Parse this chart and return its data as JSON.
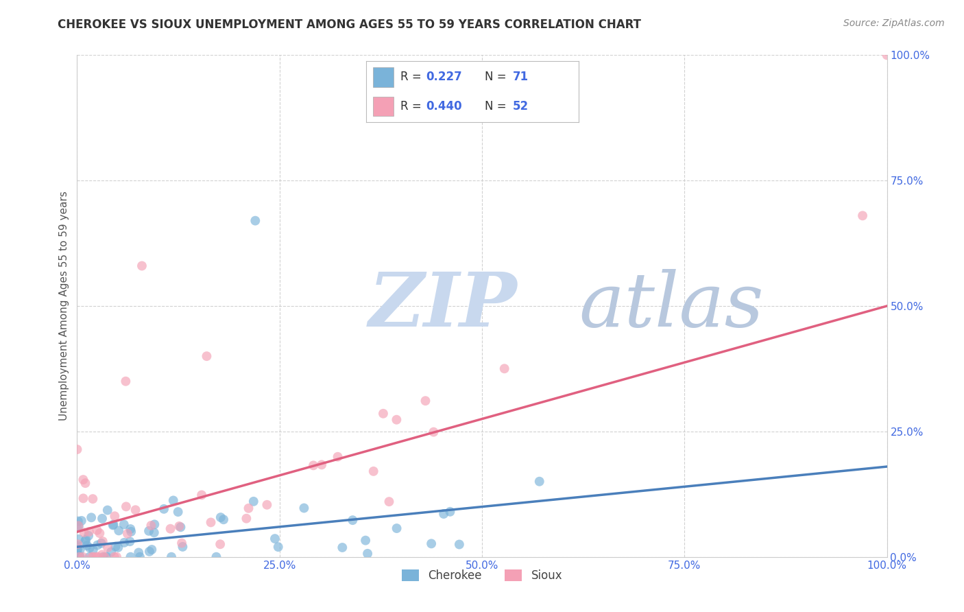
{
  "title": "CHEROKEE VS SIOUX UNEMPLOYMENT AMONG AGES 55 TO 59 YEARS CORRELATION CHART",
  "source": "Source: ZipAtlas.com",
  "ylabel": "Unemployment Among Ages 55 to 59 years",
  "xlim": [
    0.0,
    1.0
  ],
  "ylim": [
    0.0,
    1.0
  ],
  "xticks": [
    0.0,
    0.25,
    0.5,
    0.75,
    1.0
  ],
  "yticks": [
    0.0,
    0.25,
    0.5,
    0.75,
    1.0
  ],
  "xticklabels": [
    "0.0%",
    "25.0%",
    "50.0%",
    "75.0%",
    "100.0%"
  ],
  "yticklabels": [
    "0.0%",
    "25.0%",
    "50.0%",
    "75.0%",
    "100.0%"
  ],
  "cherokee_color": "#7ab3d9",
  "sioux_color": "#f4a0b5",
  "cherokee_line_color": "#4a7fbb",
  "sioux_line_color": "#e06080",
  "tick_color": "#4169e1",
  "legend_text_color": "#333333",
  "legend_value_color": "#4169e1",
  "background_color": "#ffffff",
  "grid_color": "#cccccc",
  "watermark_zip_color": "#c8d8ee",
  "watermark_atlas_color": "#b8c8de",
  "title_color": "#333333",
  "source_color": "#888888",
  "ylabel_color": "#555555",
  "cherokee_R": 0.227,
  "cherokee_N": 71,
  "sioux_R": 0.44,
  "sioux_N": 52,
  "sioux_intercept": 0.05,
  "sioux_slope": 0.45,
  "cherokee_intercept": 0.02,
  "cherokee_slope": 0.16
}
